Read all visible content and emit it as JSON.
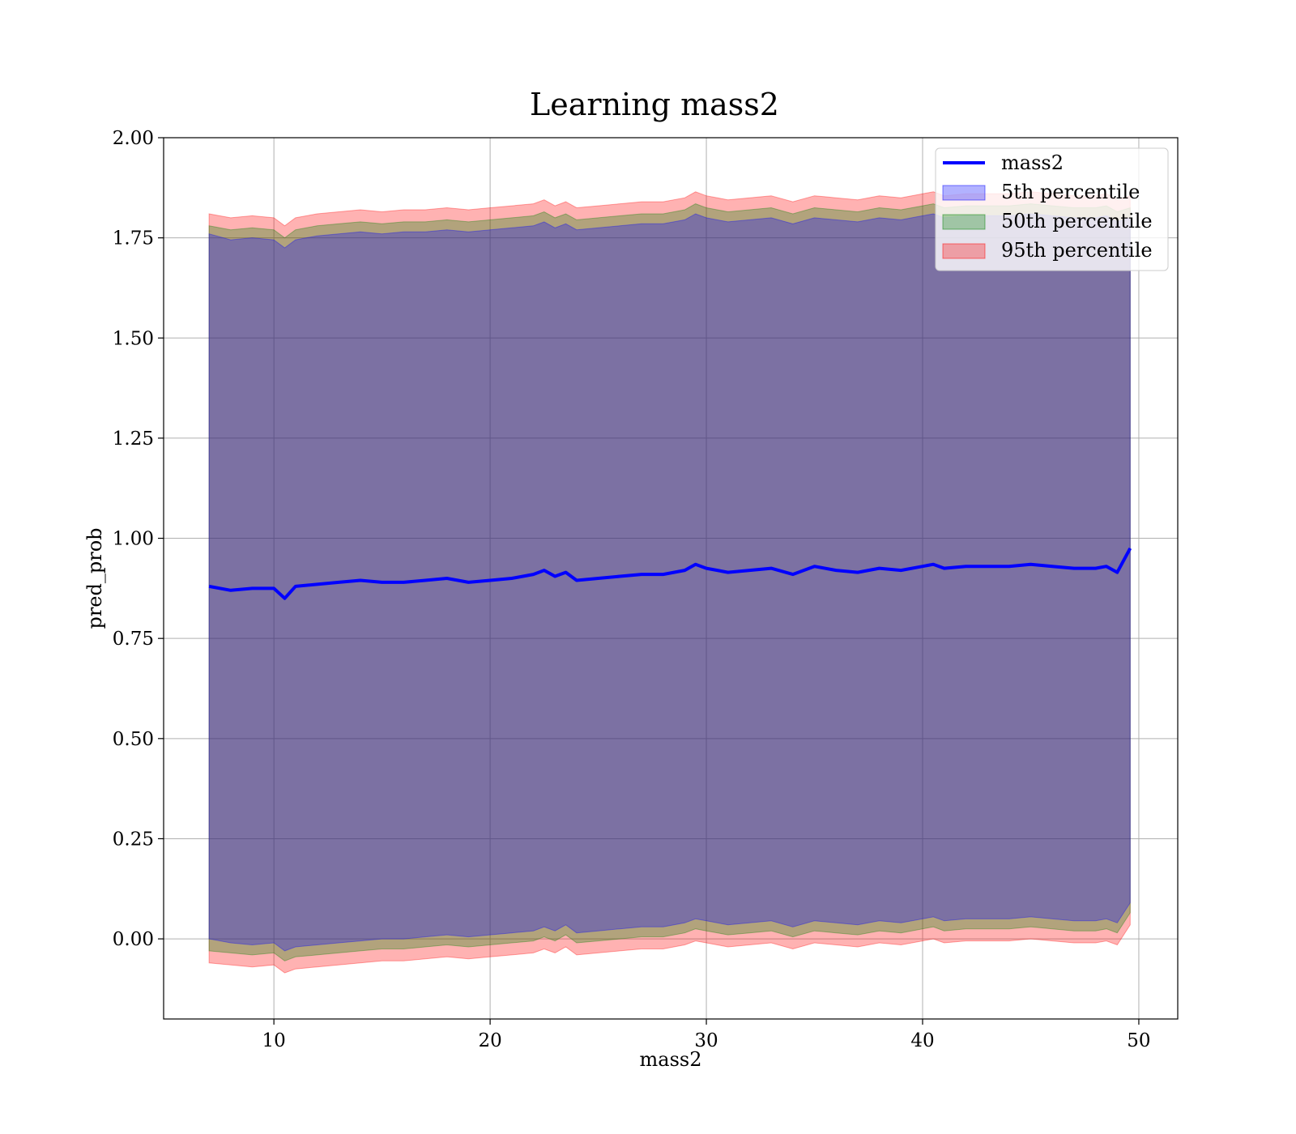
{
  "chart_data": {
    "type": "line",
    "title": "Learning mass2",
    "xlabel": "mass2",
    "ylabel": "pred_prob",
    "xlim": [
      4.9,
      51.8
    ],
    "ylim": [
      -0.2,
      2.0
    ],
    "xticks": [
      10,
      20,
      30,
      40,
      50
    ],
    "xtick_labels": [
      "10",
      "20",
      "30",
      "40",
      "50"
    ],
    "yticks": [
      0.0,
      0.25,
      0.5,
      0.75,
      1.0,
      1.25,
      1.5,
      1.75,
      2.0
    ],
    "ytick_labels": [
      "0.00",
      "0.25",
      "0.50",
      "0.75",
      "1.00",
      "1.25",
      "1.50",
      "1.75",
      "2.00"
    ],
    "grid": true,
    "legend_position": "upper right",
    "colors": {
      "line": "#0000ff",
      "band_5th": "#0000ff",
      "band_50th": "#008000",
      "band_95th": "#ff0000"
    },
    "x": [
      7.0,
      8.0,
      9.0,
      10.0,
      10.5,
      11.0,
      12.0,
      13.0,
      14.0,
      15.0,
      16.0,
      17.0,
      18.0,
      19.0,
      20.0,
      21.0,
      22.0,
      22.5,
      23.0,
      23.5,
      24.0,
      25.0,
      26.0,
      27.0,
      28.0,
      29.0,
      29.5,
      30.0,
      31.0,
      32.0,
      33.0,
      34.0,
      35.0,
      36.0,
      37.0,
      38.0,
      39.0,
      40.0,
      40.5,
      41.0,
      42.0,
      43.0,
      44.0,
      45.0,
      46.0,
      47.0,
      48.0,
      48.5,
      49.0,
      49.6
    ],
    "series": [
      {
        "name": "mass2",
        "values": [
          0.88,
          0.87,
          0.875,
          0.875,
          0.85,
          0.88,
          0.885,
          0.89,
          0.895,
          0.89,
          0.89,
          0.895,
          0.9,
          0.89,
          0.895,
          0.9,
          0.91,
          0.92,
          0.905,
          0.915,
          0.895,
          0.9,
          0.905,
          0.91,
          0.91,
          0.92,
          0.935,
          0.925,
          0.915,
          0.92,
          0.925,
          0.91,
          0.93,
          0.92,
          0.915,
          0.925,
          0.92,
          0.93,
          0.935,
          0.925,
          0.93,
          0.93,
          0.93,
          0.935,
          0.93,
          0.925,
          0.925,
          0.93,
          0.915,
          0.975
        ]
      },
      {
        "name": "5th percentile",
        "lower": [
          0.0,
          -0.01,
          -0.015,
          -0.01,
          -0.03,
          -0.02,
          -0.015,
          -0.01,
          -0.005,
          0.0,
          0.0,
          0.005,
          0.01,
          0.005,
          0.01,
          0.015,
          0.02,
          0.03,
          0.02,
          0.035,
          0.015,
          0.02,
          0.025,
          0.03,
          0.03,
          0.04,
          0.05,
          0.045,
          0.035,
          0.04,
          0.045,
          0.03,
          0.045,
          0.04,
          0.035,
          0.045,
          0.04,
          0.05,
          0.055,
          0.045,
          0.05,
          0.05,
          0.05,
          0.055,
          0.05,
          0.045,
          0.045,
          0.05,
          0.04,
          0.09
        ],
        "upper": [
          1.76,
          1.745,
          1.75,
          1.745,
          1.725,
          1.745,
          1.755,
          1.76,
          1.765,
          1.76,
          1.765,
          1.765,
          1.77,
          1.765,
          1.77,
          1.775,
          1.78,
          1.79,
          1.775,
          1.785,
          1.77,
          1.775,
          1.78,
          1.785,
          1.785,
          1.795,
          1.81,
          1.8,
          1.79,
          1.795,
          1.8,
          1.785,
          1.8,
          1.795,
          1.79,
          1.8,
          1.795,
          1.805,
          1.81,
          1.8,
          1.805,
          1.805,
          1.805,
          1.81,
          1.805,
          1.8,
          1.8,
          1.805,
          1.79,
          1.8
        ]
      },
      {
        "name": "50th percentile",
        "lower": [
          -0.03,
          -0.035,
          -0.04,
          -0.035,
          -0.055,
          -0.045,
          -0.04,
          -0.035,
          -0.03,
          -0.025,
          -0.025,
          -0.02,
          -0.015,
          -0.02,
          -0.015,
          -0.01,
          -0.005,
          0.005,
          -0.005,
          0.01,
          -0.01,
          -0.005,
          0.0,
          0.005,
          0.005,
          0.015,
          0.025,
          0.02,
          0.01,
          0.015,
          0.02,
          0.005,
          0.02,
          0.015,
          0.01,
          0.02,
          0.015,
          0.025,
          0.03,
          0.02,
          0.025,
          0.025,
          0.025,
          0.03,
          0.025,
          0.02,
          0.02,
          0.025,
          0.015,
          0.065
        ],
        "upper": [
          1.78,
          1.77,
          1.775,
          1.77,
          1.75,
          1.77,
          1.78,
          1.785,
          1.79,
          1.785,
          1.79,
          1.79,
          1.795,
          1.79,
          1.795,
          1.8,
          1.805,
          1.815,
          1.8,
          1.81,
          1.795,
          1.8,
          1.805,
          1.81,
          1.81,
          1.82,
          1.835,
          1.825,
          1.815,
          1.82,
          1.825,
          1.81,
          1.825,
          1.82,
          1.815,
          1.825,
          1.82,
          1.83,
          1.835,
          1.825,
          1.83,
          1.83,
          1.83,
          1.835,
          1.83,
          1.825,
          1.825,
          1.83,
          1.815,
          1.825
        ]
      },
      {
        "name": "95th percentile",
        "lower": [
          -0.06,
          -0.065,
          -0.07,
          -0.065,
          -0.085,
          -0.075,
          -0.07,
          -0.065,
          -0.06,
          -0.055,
          -0.055,
          -0.05,
          -0.045,
          -0.05,
          -0.045,
          -0.04,
          -0.035,
          -0.025,
          -0.035,
          -0.02,
          -0.04,
          -0.035,
          -0.03,
          -0.025,
          -0.025,
          -0.015,
          -0.005,
          -0.01,
          -0.02,
          -0.015,
          -0.01,
          -0.025,
          -0.01,
          -0.015,
          -0.02,
          -0.01,
          -0.015,
          -0.005,
          0.0,
          -0.01,
          -0.005,
          -0.005,
          -0.005,
          0.0,
          -0.005,
          -0.01,
          -0.01,
          -0.005,
          -0.015,
          0.035
        ],
        "upper": [
          1.81,
          1.8,
          1.805,
          1.8,
          1.78,
          1.8,
          1.81,
          1.815,
          1.82,
          1.815,
          1.82,
          1.82,
          1.825,
          1.82,
          1.825,
          1.83,
          1.835,
          1.845,
          1.83,
          1.84,
          1.825,
          1.83,
          1.835,
          1.84,
          1.84,
          1.85,
          1.865,
          1.855,
          1.845,
          1.85,
          1.855,
          1.84,
          1.855,
          1.85,
          1.845,
          1.855,
          1.85,
          1.86,
          1.865,
          1.855,
          1.86,
          1.86,
          1.86,
          1.865,
          1.86,
          1.855,
          1.855,
          1.86,
          1.845,
          1.855
        ]
      }
    ]
  }
}
